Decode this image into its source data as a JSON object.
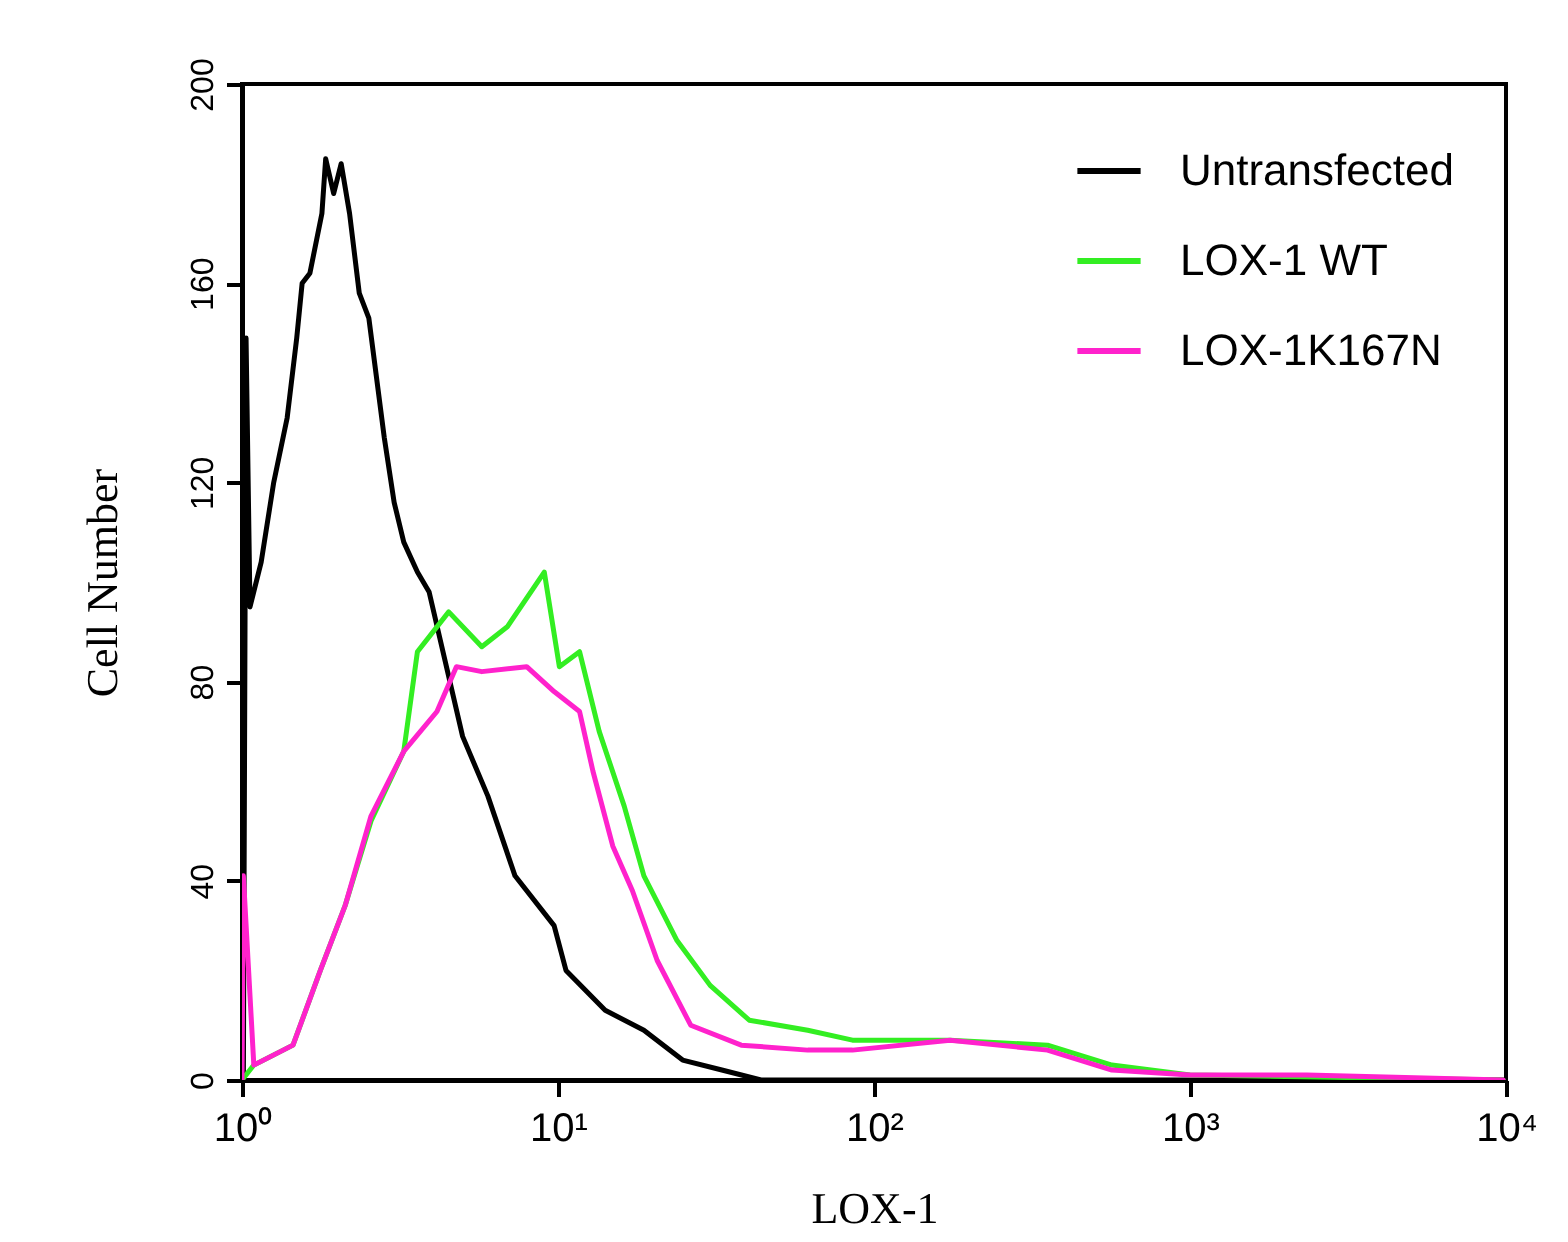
{
  "chart_data": {
    "type": "line",
    "xlabel": "LOX-1",
    "ylabel": "Cell Number",
    "log": "x",
    "xlim": [
      1,
      10000
    ],
    "xticks": [
      {
        "value": 1,
        "label": "10⁰"
      },
      {
        "value": 10,
        "label": "10¹"
      },
      {
        "value": 100,
        "label": "10²"
      },
      {
        "value": 1000,
        "label": "10³"
      },
      {
        "value": 10000,
        "label": "10⁴"
      }
    ],
    "ylim": [
      0,
      200
    ],
    "yticks": [
      0,
      40,
      80,
      120,
      160,
      200
    ],
    "grid": false,
    "legend": "top right",
    "marker": "none",
    "line_style": "solid",
    "series": [
      {
        "name": "Untransfected",
        "color": "#000000",
        "x": [
          1.01,
          1.03,
          1.06,
          1.15,
          1.26,
          1.39,
          1.49,
          1.55,
          1.64,
          1.79,
          1.84,
          1.95,
          2.06,
          2.19,
          2.35,
          2.52,
          2.82,
          3.03,
          3.25,
          3.59,
          3.91,
          4.99,
          6.0,
          7.31,
          9.72,
          10.6,
          14.1,
          18.7,
          24.8,
          33.0,
          43.9,
          114,
          956,
          9800
        ],
        "values": [
          0,
          149,
          95,
          104,
          120,
          133,
          149,
          160,
          162,
          174,
          185,
          178,
          184,
          174,
          158,
          153,
          129,
          116,
          108,
          102,
          98,
          69,
          57,
          41,
          31,
          22,
          14,
          10,
          4,
          2,
          0,
          0,
          0,
          0
        ]
      },
      {
        "name": "LOX-1 WT",
        "color": "#33ee22",
        "x": [
          1.0,
          1.09,
          1.45,
          1.77,
          2.12,
          2.56,
          3.25,
          3.59,
          4.51,
          5.74,
          6.91,
          9.05,
          10.1,
          11.7,
          13.5,
          16.2,
          18.7,
          23.8,
          30.3,
          40.3,
          61.7,
          85.5,
          174,
          354,
          566,
          1000,
          9800
        ],
        "values": [
          0,
          3,
          7,
          22,
          35,
          52,
          66,
          86,
          94,
          87,
          91,
          102,
          83,
          86,
          70,
          55,
          41,
          28,
          19,
          12,
          10,
          8,
          8,
          7,
          3,
          1,
          0
        ]
      },
      {
        "name": "LOX-1K167N",
        "color": "#ff22cc",
        "x": [
          1.0,
          1.01,
          1.09,
          1.45,
          1.77,
          2.12,
          2.56,
          3.25,
          4.14,
          4.77,
          5.74,
          7.96,
          9.72,
          11.7,
          12.9,
          14.9,
          17.2,
          20.6,
          26.3,
          38.0,
          61.7,
          85.5,
          174,
          354,
          566,
          1000,
          2340,
          9800
        ],
        "values": [
          0,
          41,
          3,
          7,
          22,
          35,
          53,
          66,
          74,
          83,
          82,
          83,
          78,
          74,
          62,
          47,
          38,
          24,
          11,
          7,
          6,
          6,
          8,
          6,
          2,
          1,
          1,
          0
        ]
      }
    ]
  }
}
